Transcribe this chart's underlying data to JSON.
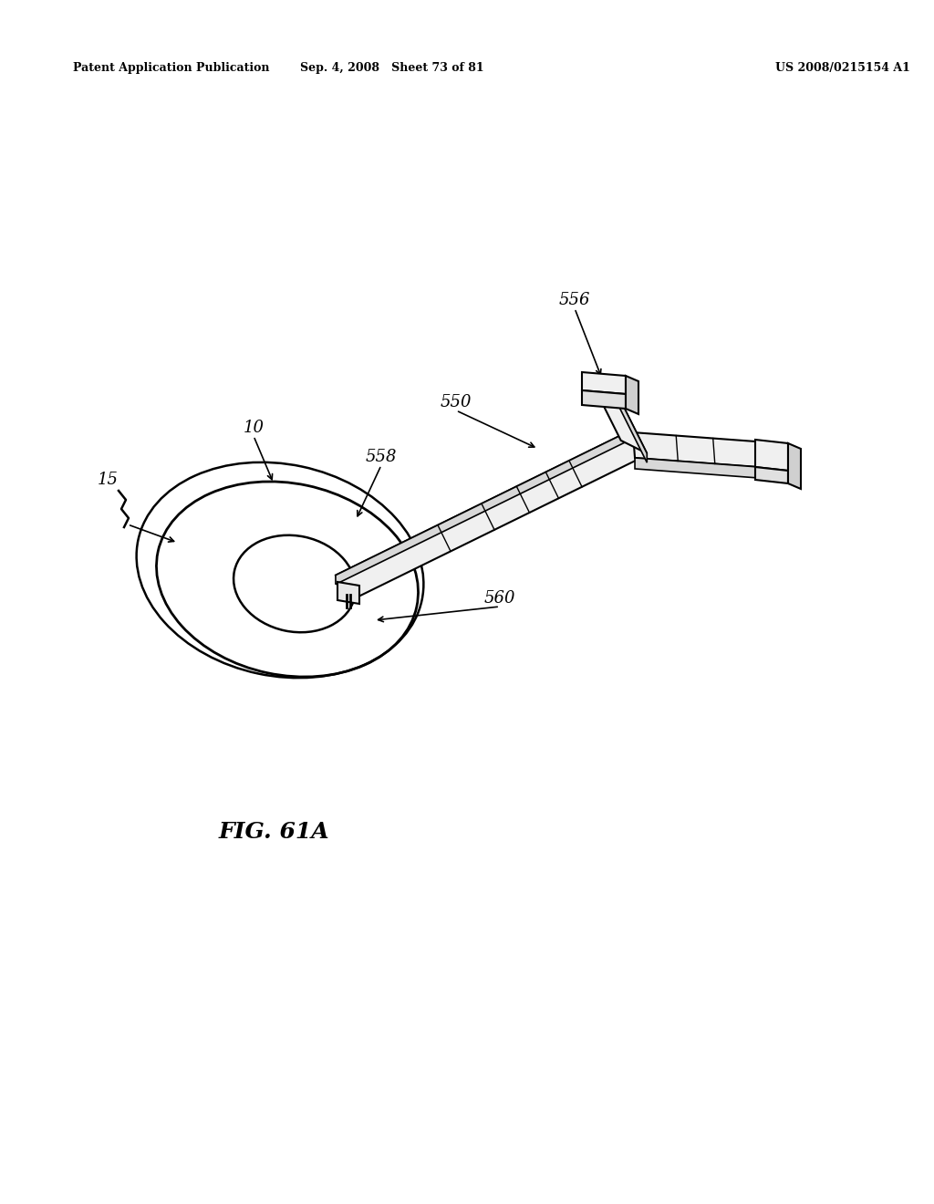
{
  "background_color": "#ffffff",
  "header_left": "Patent Application Publication",
  "header_mid": "Sep. 4, 2008   Sheet 73 of 81",
  "header_right": "US 2008/0215154 A1",
  "figure_caption": "FIG. 61A"
}
